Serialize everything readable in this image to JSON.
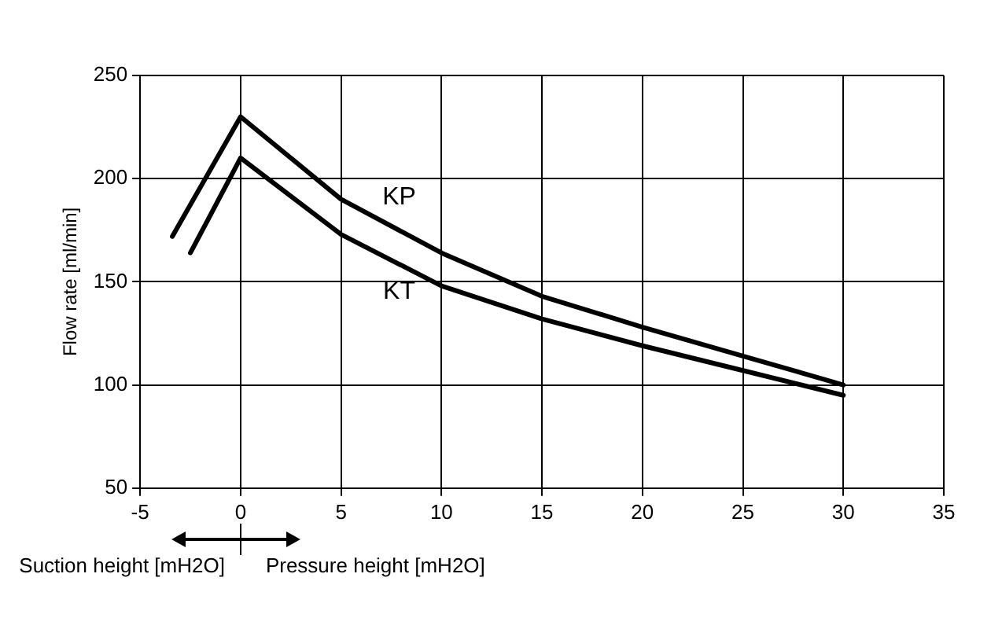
{
  "chart_data": {
    "type": "line",
    "ylabel": "Flow rate [ml/min]",
    "xlim": [
      -5,
      35
    ],
    "xticks": [
      -5,
      0,
      5,
      10,
      15,
      20,
      25,
      30,
      35
    ],
    "ylim": [
      50,
      250
    ],
    "yticks": [
      50,
      100,
      150,
      200,
      250
    ],
    "grid": true,
    "legend": false,
    "marker": "none",
    "line_style": "solid",
    "series": [
      {
        "name": "KP",
        "color": "#000000",
        "x": [
          -3.4,
          0,
          5,
          10,
          15,
          20,
          25,
          30
        ],
        "values": [
          172,
          230,
          190,
          164,
          143,
          128,
          114,
          100
        ]
      },
      {
        "name": "KT",
        "color": "#000000",
        "x": [
          -2.5,
          0,
          5,
          10,
          15,
          20,
          25,
          30
        ],
        "values": [
          164,
          210,
          173,
          148,
          132,
          119,
          107,
          95
        ]
      }
    ],
    "annotations": [
      "Suction height [mH2O]",
      "Pressure height [mH2O]"
    ]
  }
}
